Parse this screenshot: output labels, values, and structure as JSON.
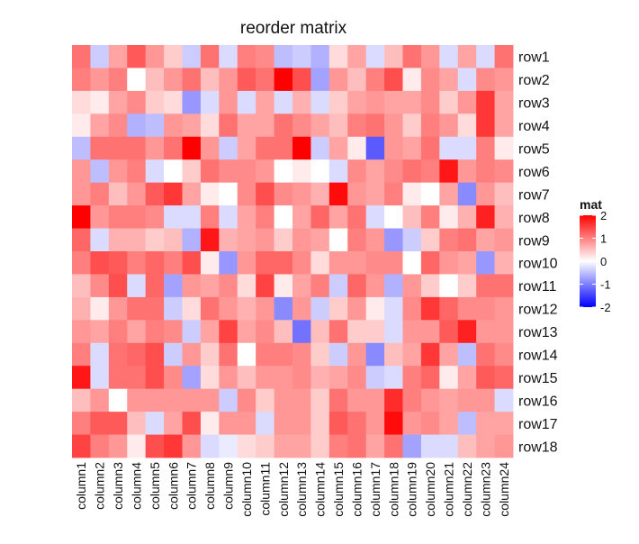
{
  "chart_data": {
    "type": "heatmap",
    "title": "reorder matrix",
    "rows": [
      "row1",
      "row2",
      "row3",
      "row4",
      "row5",
      "row6",
      "row7",
      "row8",
      "row9",
      "row10",
      "row11",
      "row12",
      "row13",
      "row14",
      "row15",
      "row16",
      "row17",
      "row18"
    ],
    "columns": [
      "column1",
      "column2",
      "column3",
      "column4",
      "column5",
      "column6",
      "column7",
      "column8",
      "column9",
      "column10",
      "column11",
      "column12",
      "column13",
      "column14",
      "column15",
      "column16",
      "column17",
      "column18",
      "column19",
      "column20",
      "column21",
      "column22",
      "column23",
      "column24"
    ],
    "values": [
      [
        1.0,
        -0.3,
        0.6,
        1.2,
        0.7,
        0.3,
        -0.3,
        1.0,
        -0.2,
        0.9,
        0.8,
        -0.4,
        -0.3,
        -0.5,
        0.2,
        0.6,
        -0.2,
        0.4,
        1.0,
        0.7,
        -0.2,
        0.6,
        -0.2,
        1.0
      ],
      [
        0.9,
        0.7,
        0.9,
        0.0,
        0.4,
        0.7,
        1.0,
        0.4,
        0.7,
        1.2,
        1.0,
        2.1,
        1.3,
        -0.6,
        0.7,
        0.4,
        0.9,
        1.3,
        0.1,
        0.8,
        0.6,
        -0.2,
        0.8,
        0.7
      ],
      [
        0.2,
        0.1,
        0.6,
        0.8,
        0.3,
        0.2,
        -0.7,
        -0.2,
        0.7,
        -0.2,
        0.6,
        -0.2,
        0.5,
        -0.2,
        0.3,
        0.6,
        0.7,
        0.6,
        0.6,
        0.8,
        0.3,
        0.7,
        1.5,
        0.6
      ],
      [
        0.1,
        0.6,
        0.8,
        -0.5,
        -0.4,
        0.7,
        0.6,
        0.2,
        1.0,
        0.6,
        0.6,
        1.0,
        0.8,
        0.6,
        0.4,
        0.9,
        1.0,
        0.7,
        0.3,
        0.9,
        0.7,
        0.2,
        1.5,
        0.6
      ],
      [
        -0.4,
        1.0,
        1.0,
        1.0,
        0.7,
        1.0,
        2.0,
        0.7,
        -0.3,
        0.6,
        1.0,
        1.0,
        2.0,
        -0.3,
        0.6,
        0.1,
        -1.2,
        0.7,
        0.6,
        1.0,
        -0.2,
        -0.2,
        0.9,
        0.1
      ],
      [
        0.7,
        -0.4,
        0.7,
        0.9,
        -0.2,
        0.0,
        0.3,
        1.0,
        0.8,
        0.8,
        0.7,
        0.0,
        0.1,
        0.0,
        -0.2,
        0.8,
        0.6,
        0.8,
        1.0,
        0.9,
        1.8,
        0.7,
        0.9,
        0.8
      ],
      [
        0.7,
        0.9,
        0.4,
        0.7,
        1.2,
        1.5,
        0.6,
        0.1,
        0.0,
        0.8,
        1.3,
        0.8,
        0.7,
        0.5,
        1.9,
        0.7,
        0.6,
        0.9,
        0.1,
        0.0,
        0.6,
        -0.8,
        0.7,
        0.4
      ],
      [
        2.0,
        0.7,
        0.9,
        0.9,
        0.8,
        -0.2,
        -0.2,
        0.9,
        -0.2,
        0.6,
        0.9,
        0.0,
        0.6,
        1.1,
        0.6,
        1.0,
        -0.2,
        0.0,
        0.4,
        0.9,
        0.1,
        0.5,
        1.7,
        0.5
      ],
      [
        1.1,
        -0.2,
        0.5,
        0.5,
        0.3,
        0.4,
        -0.5,
        1.8,
        0.5,
        0.6,
        0.7,
        0.3,
        0.7,
        0.6,
        0.0,
        0.9,
        0.7,
        -0.7,
        -0.3,
        0.3,
        0.9,
        1.0,
        0.6,
        0.7
      ],
      [
        0.9,
        1.3,
        1.2,
        0.9,
        1.1,
        0.9,
        1.3,
        0.1,
        -0.7,
        0.7,
        1.1,
        1.1,
        0.8,
        0.2,
        0.7,
        0.7,
        0.8,
        0.8,
        0.0,
        1.1,
        0.7,
        0.6,
        -0.7,
        0.5
      ],
      [
        0.4,
        0.8,
        1.3,
        -0.2,
        1.1,
        -0.6,
        0.7,
        0.6,
        0.8,
        0.2,
        1.4,
        0.1,
        0.6,
        0.9,
        -0.3,
        1.1,
        0.7,
        -0.5,
        0.7,
        0.3,
        0.0,
        0.3,
        1.0,
        1.0
      ],
      [
        0.5,
        0.1,
        0.7,
        1.0,
        1.0,
        -0.3,
        0.2,
        1.0,
        0.7,
        0.5,
        0.7,
        -0.8,
        0.7,
        -0.3,
        0.3,
        0.7,
        0.1,
        -0.2,
        0.8,
        1.5,
        1.1,
        0.8,
        0.8,
        0.7
      ],
      [
        0.7,
        0.6,
        0.9,
        0.6,
        0.9,
        0.8,
        -0.3,
        0.6,
        1.4,
        0.6,
        0.8,
        0.4,
        -1.0,
        0.4,
        1.0,
        0.3,
        0.3,
        -0.2,
        0.7,
        0.7,
        1.2,
        1.7,
        0.7,
        0.7
      ],
      [
        0.9,
        -0.2,
        1.0,
        1.1,
        1.3,
        -0.3,
        0.7,
        0.3,
        1.0,
        0.0,
        0.9,
        0.9,
        0.8,
        0.3,
        -0.3,
        0.7,
        -0.8,
        0.4,
        0.6,
        1.5,
        0.6,
        -0.4,
        1.0,
        0.8
      ],
      [
        1.8,
        -0.2,
        1.0,
        1.0,
        1.3,
        0.8,
        -0.6,
        0.2,
        0.7,
        0.4,
        0.7,
        0.7,
        0.8,
        0.5,
        0.6,
        0.8,
        -0.3,
        -0.2,
        0.9,
        1.1,
        0.1,
        0.6,
        1.2,
        1.1
      ],
      [
        0.4,
        0.7,
        0.0,
        0.7,
        0.7,
        0.7,
        0.7,
        0.7,
        -0.3,
        0.8,
        0.3,
        0.7,
        0.7,
        0.3,
        1.0,
        0.7,
        0.7,
        1.6,
        0.9,
        0.7,
        0.6,
        0.7,
        0.7,
        -0.2
      ],
      [
        0.9,
        1.2,
        1.2,
        0.4,
        -0.2,
        0.6,
        1.3,
        0.1,
        0.7,
        0.7,
        -0.2,
        0.7,
        0.7,
        0.3,
        1.2,
        1.0,
        0.7,
        1.9,
        0.7,
        0.8,
        0.6,
        -0.4,
        0.6,
        0.6
      ],
      [
        1.4,
        0.9,
        0.7,
        0.1,
        1.3,
        1.5,
        0.7,
        -0.2,
        -0.1,
        0.2,
        0.3,
        0.6,
        0.6,
        0.3,
        0.9,
        1.0,
        0.6,
        1.0,
        -0.6,
        -0.2,
        -0.2,
        0.4,
        0.6,
        0.7
      ]
    ],
    "legend": {
      "title": "mat",
      "ticks": [
        2,
        1,
        0,
        -1,
        -2
      ],
      "tick_labels": [
        "2",
        "1",
        "0",
        "-1",
        "-2"
      ],
      "range": [
        -2,
        2
      ],
      "colors": {
        "low": "#0000ff",
        "mid": "#ffffff",
        "high": "#ff0000"
      },
      "placement": "right"
    }
  }
}
